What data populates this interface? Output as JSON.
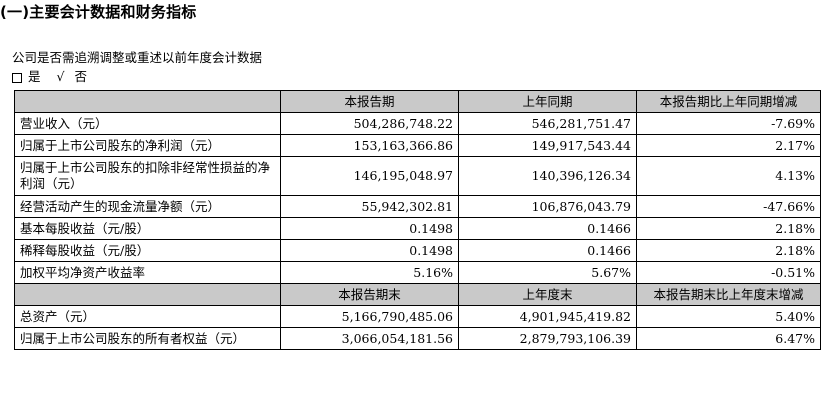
{
  "heading": "(一)主要会计数据和财务指标",
  "question": "公司是否需追溯调整或重述以前年度会计数据",
  "answer": {
    "yes": "是",
    "check": "√",
    "no": "否"
  },
  "header1": [
    "",
    "本报告期",
    "上年同期",
    "本报告期比上年同期增减"
  ],
  "rows1": [
    [
      "营业收入（元）",
      "504,286,748.22",
      "546,281,751.47",
      "-7.69%"
    ],
    [
      "归属于上市公司股东的净利润（元）",
      "153,163,366.86",
      "149,917,543.44",
      "2.17%"
    ],
    [
      "归属于上市公司股东的扣除非经常性损益的净利润（元）",
      "146,195,048.97",
      "140,396,126.34",
      "4.13%"
    ],
    [
      "经营活动产生的现金流量净额（元）",
      "55,942,302.81",
      "106,876,043.79",
      "-47.66%"
    ],
    [
      "基本每股收益（元/股）",
      "0.1498",
      "0.1466",
      "2.18%"
    ],
    [
      "稀释每股收益（元/股）",
      "0.1498",
      "0.1466",
      "2.18%"
    ],
    [
      "加权平均净资产收益率",
      "5.16%",
      "5.67%",
      "-0.51%"
    ]
  ],
  "header2": [
    "",
    "本报告期末",
    "上年度末",
    "本报告期末比上年度末增减"
  ],
  "rows2": [
    [
      "总资产（元）",
      "5,166,790,485.06",
      "4,901,945,419.82",
      "5.40%"
    ],
    [
      "归属于上市公司股东的所有者权益（元）",
      "3,066,054,181.56",
      "2,879,793,106.39",
      "6.47%"
    ]
  ]
}
